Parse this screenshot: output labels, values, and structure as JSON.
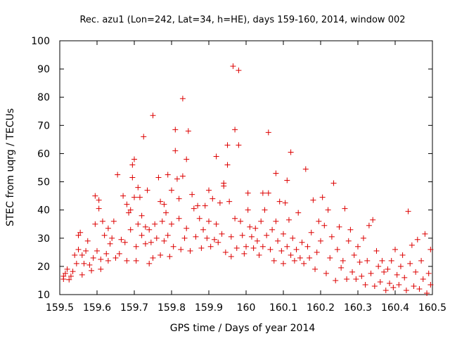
{
  "colors": {
    "series": "#dd0000",
    "axis": "#000000",
    "background": "#ffffff"
  },
  "chart_data": {
    "type": "scatter",
    "title": "Rec. azu1 (Lon=242, Lat=34, h=HE), days 159-160, 2014, window 002",
    "xlabel": "GPS time / Days of year 2014",
    "ylabel": "STEC from uqrg / TECUs",
    "xlim": [
      159.5,
      160.5
    ],
    "ylim": [
      10,
      100
    ],
    "xticks": [
      159.5,
      159.6,
      159.7,
      159.8,
      159.9,
      160,
      160.1,
      160.2,
      160.3,
      160.4,
      160.5
    ],
    "xtick_labels": [
      "159.5",
      "159.6",
      "159.7",
      "159.8",
      "159.9",
      "160",
      "160.1",
      "160.2",
      "160.3",
      "160.4",
      "160.5"
    ],
    "yticks": [
      10,
      20,
      30,
      40,
      50,
      60,
      70,
      80,
      90,
      100
    ],
    "ytick_labels": [
      "10",
      "20",
      "30",
      "40",
      "50",
      "60",
      "70",
      "80",
      "90",
      "100"
    ],
    "grid": false,
    "marker": "plus",
    "points": [
      [
        159.51,
        15.5
      ],
      [
        159.51,
        16.5
      ],
      [
        159.515,
        17.5
      ],
      [
        159.52,
        19.0
      ],
      [
        159.525,
        15.3
      ],
      [
        159.53,
        16.5
      ],
      [
        159.535,
        18.2
      ],
      [
        159.54,
        24.0
      ],
      [
        159.545,
        21.0
      ],
      [
        159.55,
        26.0
      ],
      [
        159.55,
        31.0
      ],
      [
        159.555,
        32.0
      ],
      [
        159.56,
        24.0
      ],
      [
        159.56,
        17.0
      ],
      [
        159.565,
        21.0
      ],
      [
        159.57,
        25.5
      ],
      [
        159.575,
        29.0
      ],
      [
        159.58,
        20.5
      ],
      [
        159.585,
        18.5
      ],
      [
        159.59,
        23.0
      ],
      [
        159.595,
        45.0
      ],
      [
        159.595,
        35.0
      ],
      [
        159.6,
        25.5
      ],
      [
        159.605,
        43.5
      ],
      [
        159.605,
        40.5
      ],
      [
        159.61,
        22.5
      ],
      [
        159.61,
        19.0
      ],
      [
        159.615,
        36.0
      ],
      [
        159.62,
        31.0
      ],
      [
        159.625,
        24.5
      ],
      [
        159.63,
        33.5
      ],
      [
        159.63,
        22.0
      ],
      [
        159.635,
        28.0
      ],
      [
        159.64,
        30.0
      ],
      [
        159.645,
        36.0
      ],
      [
        159.65,
        23.0
      ],
      [
        159.655,
        52.5
      ],
      [
        159.66,
        24.5
      ],
      [
        159.665,
        29.5
      ],
      [
        159.67,
        45.0
      ],
      [
        159.675,
        28.5
      ],
      [
        159.68,
        22.0
      ],
      [
        159.68,
        42.0
      ],
      [
        159.685,
        39.0
      ],
      [
        159.69,
        33.0
      ],
      [
        159.69,
        40.0
      ],
      [
        159.695,
        51.5
      ],
      [
        159.695,
        56.0
      ],
      [
        159.7,
        58.0
      ],
      [
        159.7,
        44.5
      ],
      [
        159.705,
        22.0
      ],
      [
        159.705,
        27.0
      ],
      [
        159.71,
        35.0
      ],
      [
        159.71,
        48.0
      ],
      [
        159.715,
        44.5
      ],
      [
        159.72,
        31.0
      ],
      [
        159.72,
        38.0
      ],
      [
        159.725,
        66.0
      ],
      [
        159.73,
        28.0
      ],
      [
        159.73,
        34.0
      ],
      [
        159.735,
        47.0
      ],
      [
        159.74,
        21.0
      ],
      [
        159.74,
        33.0
      ],
      [
        159.745,
        28.5
      ],
      [
        159.75,
        73.5
      ],
      [
        159.75,
        23.0
      ],
      [
        159.755,
        35.0
      ],
      [
        159.76,
        30.0
      ],
      [
        159.765,
        51.5
      ],
      [
        159.77,
        43.0
      ],
      [
        159.77,
        24.0
      ],
      [
        159.775,
        36.0
      ],
      [
        159.78,
        29.0
      ],
      [
        159.78,
        42.0
      ],
      [
        159.785,
        39.0
      ],
      [
        159.79,
        52.5
      ],
      [
        159.79,
        31.0
      ],
      [
        159.795,
        23.5
      ],
      [
        159.8,
        47.0
      ],
      [
        159.8,
        35.0
      ],
      [
        159.805,
        27.0
      ],
      [
        159.81,
        68.5
      ],
      [
        159.81,
        61.0
      ],
      [
        159.815,
        51.0
      ],
      [
        159.82,
        44.0
      ],
      [
        159.82,
        37.0
      ],
      [
        159.825,
        26.0
      ],
      [
        159.83,
        79.5
      ],
      [
        159.83,
        52.0
      ],
      [
        159.835,
        30.0
      ],
      [
        159.84,
        58.0
      ],
      [
        159.84,
        33.5
      ],
      [
        159.845,
        68.0
      ],
      [
        159.85,
        25.5
      ],
      [
        159.855,
        45.5
      ],
      [
        159.86,
        40.5
      ],
      [
        159.865,
        30.5
      ],
      [
        159.87,
        41.5
      ],
      [
        159.875,
        37.0
      ],
      [
        159.88,
        26.5
      ],
      [
        159.885,
        33.0
      ],
      [
        159.89,
        41.5
      ],
      [
        159.895,
        30.0
      ],
      [
        159.9,
        47.0
      ],
      [
        159.9,
        36.0
      ],
      [
        159.905,
        27.0
      ],
      [
        159.91,
        44.0
      ],
      [
        159.915,
        29.5
      ],
      [
        159.92,
        59.0
      ],
      [
        159.92,
        35.0
      ],
      [
        159.925,
        28.5
      ],
      [
        159.93,
        42.5
      ],
      [
        159.935,
        31.5
      ],
      [
        159.94,
        48.5
      ],
      [
        159.94,
        49.5
      ],
      [
        159.945,
        25.0
      ],
      [
        159.95,
        63.0
      ],
      [
        159.95,
        56.0
      ],
      [
        159.955,
        43.0
      ],
      [
        159.96,
        30.5
      ],
      [
        159.96,
        23.5
      ],
      [
        159.965,
        91.0
      ],
      [
        159.97,
        68.5
      ],
      [
        159.97,
        37.0
      ],
      [
        159.975,
        26.5
      ],
      [
        159.98,
        89.5
      ],
      [
        159.98,
        63.0
      ],
      [
        159.985,
        36.0
      ],
      [
        159.99,
        31.0
      ],
      [
        159.995,
        24.5
      ],
      [
        160.0,
        27.0
      ],
      [
        160.005,
        46.0
      ],
      [
        160.005,
        40.0
      ],
      [
        160.01,
        34.0
      ],
      [
        160.015,
        30.5
      ],
      [
        160.02,
        26.5
      ],
      [
        160.025,
        33.5
      ],
      [
        160.03,
        29.0
      ],
      [
        160.035,
        24.0
      ],
      [
        160.04,
        36.0
      ],
      [
        160.045,
        46.0
      ],
      [
        160.045,
        27.0
      ],
      [
        160.05,
        40.0
      ],
      [
        160.055,
        31.0
      ],
      [
        160.06,
        67.5
      ],
      [
        160.06,
        46.0
      ],
      [
        160.065,
        26.0
      ],
      [
        160.07,
        33.0
      ],
      [
        160.075,
        22.0
      ],
      [
        160.08,
        53.0
      ],
      [
        160.08,
        36.0
      ],
      [
        160.085,
        29.0
      ],
      [
        160.09,
        43.0
      ],
      [
        160.095,
        25.5
      ],
      [
        160.1,
        31.5
      ],
      [
        160.1,
        21.0
      ],
      [
        160.105,
        42.5
      ],
      [
        160.11,
        50.5
      ],
      [
        160.11,
        27.0
      ],
      [
        160.115,
        36.5
      ],
      [
        160.12,
        60.5
      ],
      [
        160.12,
        24.0
      ],
      [
        160.125,
        30.0
      ],
      [
        160.13,
        22.0
      ],
      [
        160.135,
        26.0
      ],
      [
        160.14,
        39.0
      ],
      [
        160.145,
        23.0
      ],
      [
        160.15,
        28.5
      ],
      [
        160.155,
        21.0
      ],
      [
        160.16,
        54.5
      ],
      [
        160.165,
        27.0
      ],
      [
        160.17,
        23.0
      ],
      [
        160.175,
        32.0
      ],
      [
        160.18,
        43.5
      ],
      [
        160.185,
        19.0
      ],
      [
        160.19,
        25.0
      ],
      [
        160.195,
        36.0
      ],
      [
        160.2,
        29.0
      ],
      [
        160.205,
        44.5
      ],
      [
        160.21,
        34.5
      ],
      [
        160.215,
        17.5
      ],
      [
        160.22,
        40.0
      ],
      [
        160.225,
        23.0
      ],
      [
        160.23,
        30.5
      ],
      [
        160.235,
        49.5
      ],
      [
        160.24,
        15.0
      ],
      [
        160.245,
        26.0
      ],
      [
        160.25,
        34.0
      ],
      [
        160.255,
        19.5
      ],
      [
        160.26,
        22.0
      ],
      [
        160.265,
        40.5
      ],
      [
        160.27,
        15.5
      ],
      [
        160.275,
        29.0
      ],
      [
        160.28,
        33.0
      ],
      [
        160.285,
        18.0
      ],
      [
        160.29,
        24.0
      ],
      [
        160.295,
        15.5
      ],
      [
        160.3,
        27.0
      ],
      [
        160.305,
        21.5
      ],
      [
        160.31,
        16.5
      ],
      [
        160.315,
        30.0
      ],
      [
        160.32,
        13.5
      ],
      [
        160.325,
        22.0
      ],
      [
        160.33,
        34.5
      ],
      [
        160.335,
        17.5
      ],
      [
        160.34,
        36.5
      ],
      [
        160.345,
        13.0
      ],
      [
        160.35,
        25.5
      ],
      [
        160.355,
        20.0
      ],
      [
        160.36,
        14.5
      ],
      [
        160.365,
        22.0
      ],
      [
        160.37,
        18.0
      ],
      [
        160.375,
        11.5
      ],
      [
        160.38,
        19.0
      ],
      [
        160.385,
        14.0
      ],
      [
        160.39,
        22.0
      ],
      [
        160.395,
        12.5
      ],
      [
        160.4,
        26.0
      ],
      [
        160.405,
        17.0
      ],
      [
        160.41,
        13.5
      ],
      [
        160.415,
        20.0
      ],
      [
        160.42,
        24.0
      ],
      [
        160.425,
        16.0
      ],
      [
        160.43,
        11.5
      ],
      [
        160.435,
        39.5
      ],
      [
        160.44,
        21.0
      ],
      [
        160.445,
        27.5
      ],
      [
        160.45,
        13.0
      ],
      [
        160.455,
        18.0
      ],
      [
        160.46,
        29.5
      ],
      [
        160.465,
        12.0
      ],
      [
        160.47,
        22.0
      ],
      [
        160.475,
        15.5
      ],
      [
        160.48,
        31.5
      ],
      [
        160.485,
        10.5
      ],
      [
        160.49,
        17.5
      ],
      [
        160.495,
        26.0
      ],
      [
        160.495,
        13.5
      ]
    ]
  }
}
